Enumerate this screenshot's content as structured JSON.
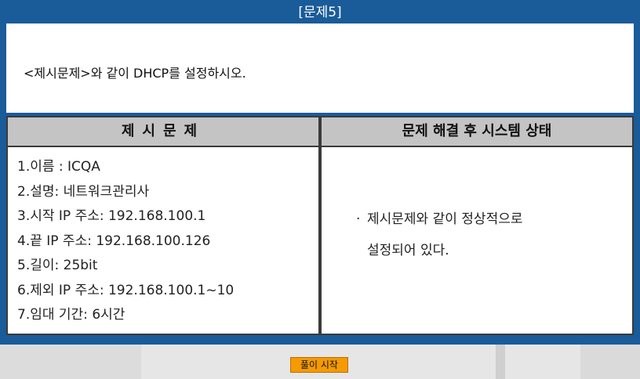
{
  "title": "[문제5]",
  "instruction": "<제시문제>와 같이 DHCP를 설정하시오.",
  "left_panel": {
    "header": "제시문제",
    "items": [
      "1.이름 : ICQA",
      "2.설명: 네트워크관리사",
      "3.시작 IP 주소: 192.168.100.1",
      "4.끝 IP 주소: 192.168.100.126",
      "5.길이: 25bit",
      "6.제외 IP 주소: 192.168.100.1~10",
      "7.임대 기간: 6시간"
    ]
  },
  "right_panel": {
    "header": "문제 해결 후 시스템 상태",
    "bullet": "·",
    "line1": "제시문제와 같이 정상적으로",
    "line2": "설정되어 있다."
  },
  "start_button": "풀이 시작",
  "colors": {
    "frame": "#1a5b9a",
    "header_bg": "#c4c4c4",
    "button": "#f59a00"
  }
}
